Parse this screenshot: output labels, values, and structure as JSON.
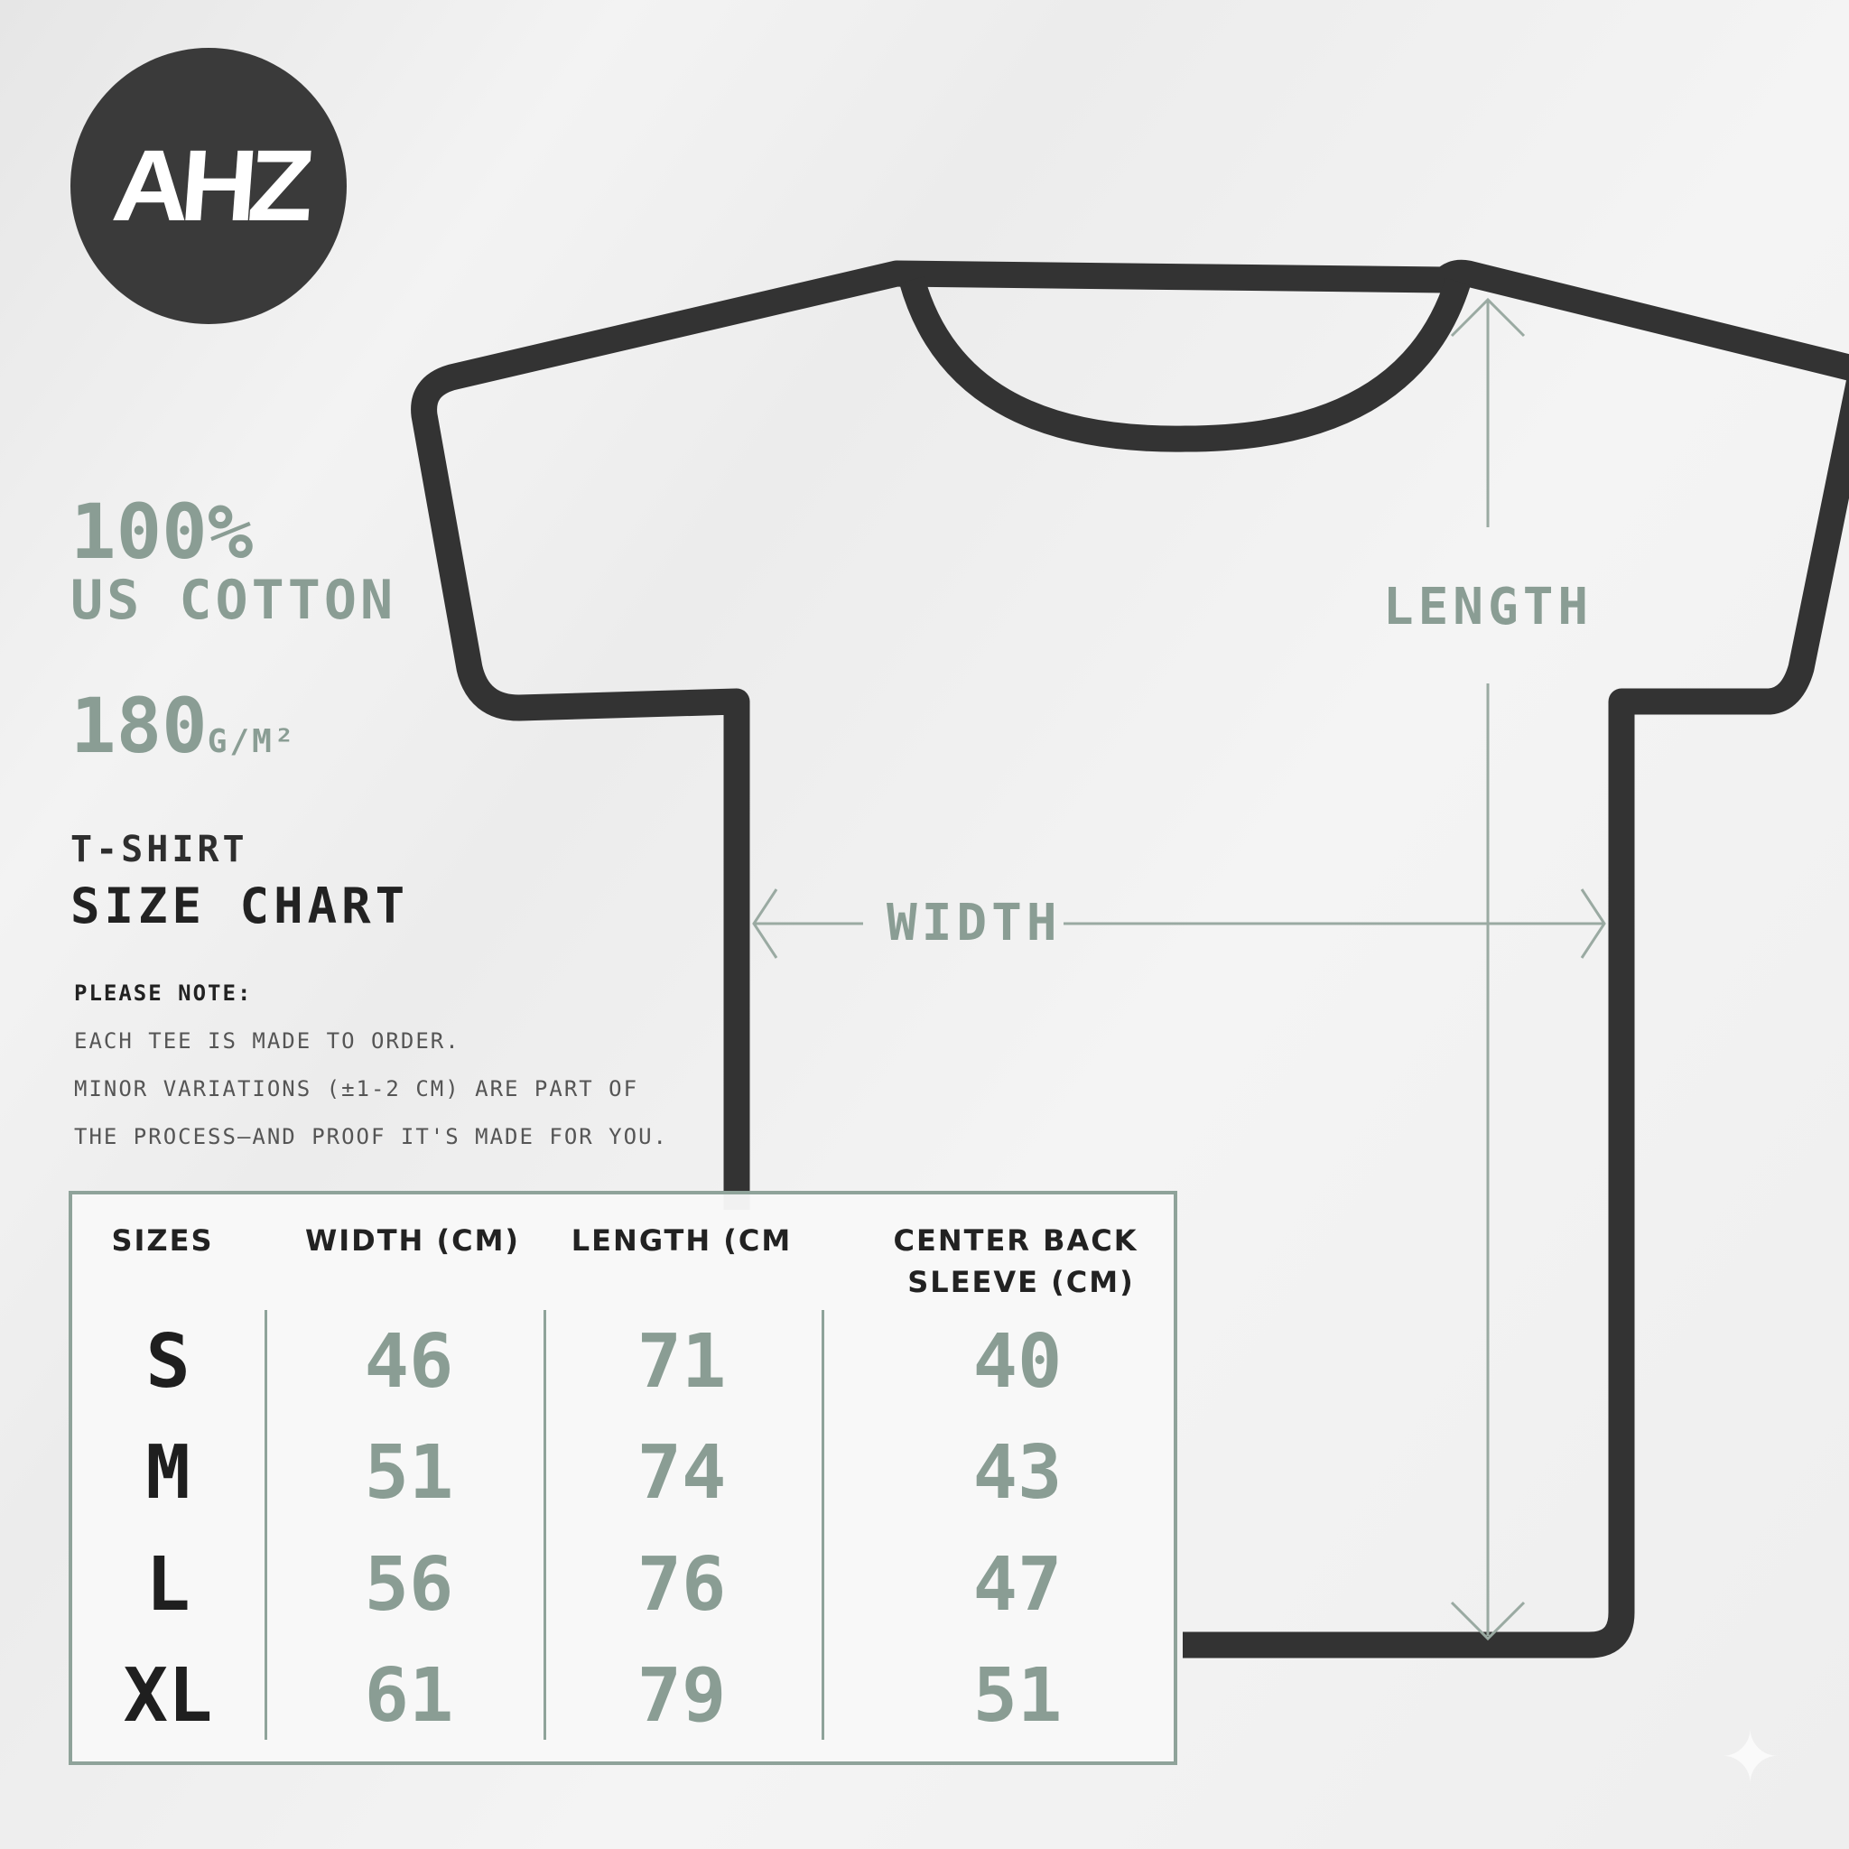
{
  "brand": {
    "logo_text": "AHZ"
  },
  "material": {
    "percent": "100%",
    "fabric": "US COTTON",
    "weight_value": "180",
    "weight_unit": "G/M²"
  },
  "title": {
    "line1": "T-SHIRT",
    "line2": "SIZE CHART"
  },
  "notes": {
    "heading": "PLEASE NOTE:",
    "lines": [
      "EACH TEE IS MADE TO ORDER.",
      "MINOR VARIATIONS (±1-2 CM) ARE PART OF",
      "THE PROCESS—AND PROOF IT'S MADE FOR YOU."
    ]
  },
  "diagram": {
    "length_label": "LENGTH",
    "width_label": "WIDTH"
  },
  "table": {
    "headers": [
      "SIZES",
      "WIDTH (CM)",
      "LENGTH (CM",
      "CENTER BACK",
      "SLEEVE (CM)"
    ],
    "rows": [
      {
        "size": "S",
        "width": "46",
        "length": "71",
        "sleeve": "40"
      },
      {
        "size": "M",
        "width": "51",
        "length": "74",
        "sleeve": "43"
      },
      {
        "size": "L",
        "width": "56",
        "length": "76",
        "sleeve": "47"
      },
      {
        "size": "XL",
        "width": "61",
        "length": "79",
        "sleeve": "51"
      }
    ]
  },
  "colors": {
    "accent": "#8a9d94",
    "outline": "#333333",
    "background": "#efefef"
  }
}
